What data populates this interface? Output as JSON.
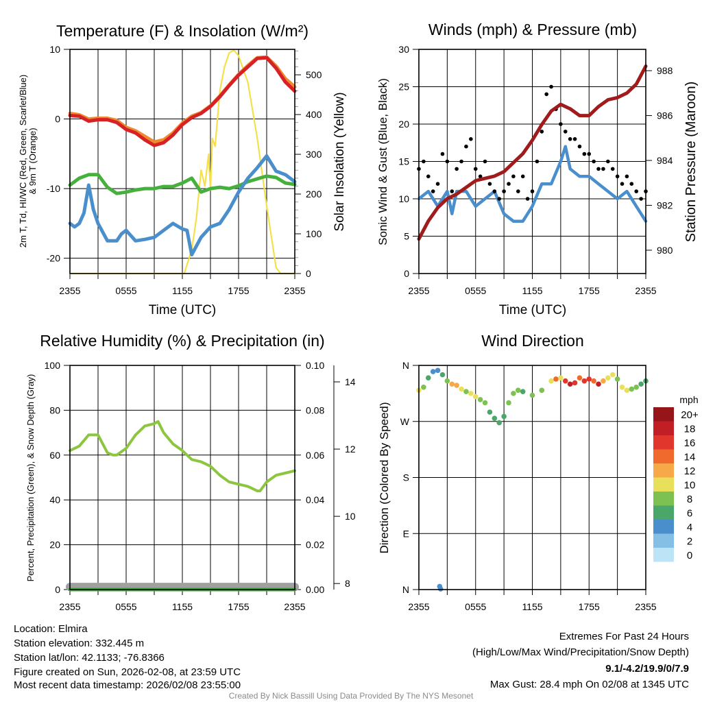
{
  "x_ticks": [
    "2355",
    "0555",
    "1155",
    "1755",
    "2355"
  ],
  "time_label": "Time (UTC)",
  "chart_data": [
    {
      "type": "line",
      "title": "Temperature (F) & Insolation (W/m²)",
      "ylabel_line1": "2m T, Td, HI/WC (Red, Green, Scarlet/Blue)",
      "ylabel_line2": "& 9m T (Orange)",
      "y2label": "Solar Insolation (Yellow)",
      "xlabel": "Time (UTC)",
      "xlim_hours": [
        0,
        24
      ],
      "ylim": [
        -22.2,
        10
      ],
      "y2lim": [
        0,
        564
      ],
      "yticks": [
        10,
        0,
        -10,
        -20
      ],
      "y2ticks": [
        0,
        100,
        200,
        300,
        400,
        500
      ],
      "series": [
        {
          "name": "Insolation",
          "axis": "right",
          "color": "#f5e04a",
          "x": [
            0,
            12.2,
            13,
            13.5,
            14,
            14.4,
            14.8,
            15,
            15.2,
            15.5,
            16,
            16.5,
            17,
            17.5,
            18,
            19,
            20,
            21,
            22,
            22.5,
            23,
            24
          ],
          "values": [
            0,
            0,
            60,
            140,
            260,
            220,
            300,
            210,
            340,
            320,
            460,
            520,
            555,
            562,
            548,
            480,
            340,
            170,
            15,
            0,
            0,
            0
          ]
        },
        {
          "name": "9m T",
          "axis": "left",
          "color": "#f08a30",
          "x": [
            0,
            1,
            2,
            3,
            4,
            5,
            6,
            7,
            8,
            9,
            10,
            11,
            12,
            13,
            14,
            15,
            16,
            17,
            18,
            19,
            20,
            21,
            22,
            23,
            24
          ],
          "values": [
            0.8,
            0.6,
            0,
            0.1,
            0.1,
            -0.2,
            -1.2,
            -1.7,
            -2.5,
            -3.3,
            -3.0,
            -2.0,
            -0.6,
            0.4,
            0.9,
            1.9,
            3.3,
            4.9,
            6.4,
            7.7,
            8.8,
            8.9,
            7.6,
            5.8,
            4.6
          ]
        },
        {
          "name": "2m T",
          "axis": "left",
          "color": "#d62224",
          "x": [
            0,
            1,
            2,
            3,
            4,
            5,
            6,
            7,
            8,
            9,
            10,
            11,
            12,
            13,
            14,
            15,
            16,
            17,
            18,
            19,
            20,
            21,
            22,
            23,
            24
          ],
          "values": [
            0.5,
            0.4,
            -0.3,
            -0.1,
            -0.1,
            -0.5,
            -1.5,
            -2.0,
            -3.0,
            -3.8,
            -3.4,
            -2.3,
            -0.8,
            0.2,
            0.8,
            1.8,
            3.2,
            4.8,
            6.3,
            7.5,
            8.7,
            8.8,
            7.3,
            5.3,
            4.0
          ]
        },
        {
          "name": "Td",
          "axis": "left",
          "color": "#46b03d",
          "x": [
            0,
            1,
            2,
            3,
            4,
            5,
            6,
            7,
            8,
            9,
            10,
            11,
            12,
            13,
            14,
            15,
            16,
            17,
            18,
            19,
            20,
            21,
            22,
            23,
            24
          ],
          "values": [
            -9.5,
            -8.5,
            -8.0,
            -8.0,
            -9.8,
            -10.7,
            -10.5,
            -10.2,
            -10.0,
            -10.0,
            -9.7,
            -9.7,
            -9.2,
            -8.5,
            -10.5,
            -10.0,
            -9.8,
            -10.0,
            -9.6,
            -9.0,
            -8.6,
            -8.2,
            -8.4,
            -9.2,
            -9.4
          ]
        },
        {
          "name": "HI/WC",
          "axis": "left",
          "color": "#4a8fcb",
          "x": [
            0,
            0.5,
            1,
            1.5,
            2,
            2.5,
            3,
            4,
            5,
            5.5,
            6,
            7,
            8,
            9,
            10,
            11,
            12,
            12.5,
            13,
            14,
            15,
            16,
            17,
            18,
            19,
            20,
            21,
            22,
            23,
            24
          ],
          "values": [
            -15,
            -15.5,
            -15,
            -13.5,
            -9.5,
            -13,
            -15,
            -17.5,
            -17.5,
            -16.5,
            -16,
            -17.5,
            -17.3,
            -17,
            -16,
            -15,
            -15.8,
            -16,
            -19.5,
            -17,
            -15.5,
            -15,
            -13,
            -10.5,
            -8.5,
            -7,
            -5.3,
            -7.5,
            -8,
            -9
          ]
        }
      ]
    },
    {
      "type": "line",
      "title": "Winds (mph) & Pressure (mb)",
      "ylabel": "Sonic Wind & Gust (Blue, Black)",
      "y2label": "Station Pressure (Maroon)",
      "xlabel": "Time (UTC)",
      "xlim_hours": [
        0,
        24
      ],
      "ylim": [
        0,
        30
      ],
      "y2lim": [
        978.96,
        988.95
      ],
      "yticks": [
        0,
        5,
        10,
        15,
        20,
        25,
        30
      ],
      "y2ticks": [
        980,
        982,
        984,
        986,
        988
      ],
      "series": [
        {
          "name": "Sonic Wind",
          "axis": "left",
          "color": "#4a8fcb",
          "x": [
            0,
            1,
            2,
            3,
            3.5,
            4,
            5,
            6,
            7,
            8,
            9,
            10,
            11,
            12,
            13,
            14,
            15,
            15.5,
            16,
            17,
            18,
            19,
            20,
            21,
            22,
            23,
            24
          ],
          "values": [
            10,
            11,
            9,
            11,
            8,
            11,
            11,
            9,
            10,
            11,
            8,
            7,
            7,
            9,
            12,
            12,
            15,
            17,
            14,
            13,
            13,
            12,
            11,
            10,
            11,
            9,
            7
          ]
        },
        {
          "name": "Gust",
          "axis": "left",
          "color": "#000000",
          "kind": "scatter",
          "x_step": 0.5,
          "values": [
            14,
            15,
            13,
            11,
            12,
            16,
            15,
            11,
            14,
            15,
            17,
            18,
            14,
            13,
            15,
            12,
            11,
            10,
            11,
            12,
            13,
            11,
            13,
            10,
            11,
            15,
            19,
            24,
            25,
            22,
            20,
            19,
            18,
            18,
            17,
            16,
            16,
            15,
            14,
            14,
            15,
            14,
            13,
            12,
            13,
            12,
            11,
            10,
            11
          ]
        },
        {
          "name": "Pressure",
          "axis": "right",
          "color": "#a01c1c",
          "x": [
            0,
            1,
            2,
            3,
            4,
            5,
            6,
            7,
            8,
            9,
            10,
            11,
            12,
            13,
            14,
            15,
            16,
            17,
            18,
            19,
            20,
            21,
            22,
            23,
            24
          ],
          "values": [
            980.5,
            981.3,
            981.9,
            982.3,
            982.5,
            982.8,
            983.1,
            983.2,
            983.3,
            983.5,
            983.9,
            984.3,
            984.9,
            985.6,
            986.2,
            986.5,
            986.3,
            986.0,
            986.0,
            986.4,
            986.7,
            986.8,
            987.0,
            987.4,
            988.2
          ]
        }
      ]
    },
    {
      "type": "line",
      "title": "Relative Humidity (%) & Precipitation (in)",
      "ylabel": "Percent, Precipitation (Green), & Snow Depth (Gray)",
      "xlim_hours": [
        0,
        24
      ],
      "ylim": [
        0,
        100
      ],
      "y2lim": [
        0,
        0.1
      ],
      "y3lim": [
        7.82,
        14.49
      ],
      "yticks": [
        0,
        20,
        40,
        60,
        80,
        100
      ],
      "y2ticks": [
        "0.00",
        "0.02",
        "0.04",
        "0.06",
        "0.08",
        "0.10"
      ],
      "y3ticks": [
        8,
        10,
        12,
        14
      ],
      "series": [
        {
          "name": "RH",
          "axis": "left",
          "color": "#8cc63f",
          "x": [
            0,
            1,
            2,
            3,
            4,
            4.6,
            5,
            6,
            7,
            8,
            9,
            9.4,
            10,
            11,
            12,
            13,
            14,
            15,
            16,
            17,
            18,
            19,
            20,
            20.3,
            21,
            22,
            23,
            24
          ],
          "values": [
            62,
            64,
            69,
            69,
            61,
            60,
            60,
            63,
            69,
            73,
            74,
            75,
            70,
            65,
            62,
            58,
            57,
            55,
            51,
            48,
            47,
            46,
            44,
            44,
            48,
            51,
            52,
            53
          ]
        },
        {
          "name": "Snow Depth",
          "axis": "far",
          "color": "#a0a0a0",
          "x": [
            0,
            24
          ],
          "values": [
            7.9,
            7.9
          ]
        },
        {
          "name": "Precipitation",
          "axis": "right",
          "color": "#3aa83a",
          "x": [
            0,
            24
          ],
          "values": [
            0,
            0
          ]
        }
      ]
    },
    {
      "type": "scatter",
      "title": "Wind Direction",
      "ylabel": "Direction (Colored By Speed)",
      "xlim_hours": [
        0,
        24
      ],
      "ylim_deg": [
        0,
        360
      ],
      "ytick_labels": [
        "N",
        "W",
        "S",
        "E",
        "N"
      ],
      "ytick_deg": [
        360,
        270,
        180,
        90,
        0
      ],
      "points": [
        [
          0,
          320,
          10
        ],
        [
          0.5,
          325,
          8
        ],
        [
          1,
          340,
          6
        ],
        [
          1.5,
          350,
          5
        ],
        [
          2,
          352,
          4
        ],
        [
          2.5,
          345,
          7
        ],
        [
          3,
          335,
          9
        ],
        [
          3.5,
          330,
          12
        ],
        [
          4,
          328,
          13
        ],
        [
          4.5,
          322,
          10
        ],
        [
          5,
          318,
          8
        ],
        [
          5.5,
          315,
          10
        ],
        [
          6,
          310,
          11
        ],
        [
          6.5,
          305,
          9
        ],
        [
          7,
          300,
          8
        ],
        [
          7.5,
          285,
          7
        ],
        [
          8,
          275,
          6
        ],
        [
          8.5,
          268,
          6
        ],
        [
          9,
          278,
          7
        ],
        [
          9.5,
          300,
          8
        ],
        [
          10,
          315,
          9
        ],
        [
          10.5,
          320,
          8
        ],
        [
          11,
          318,
          7
        ],
        [
          12,
          312,
          8
        ],
        [
          13,
          320,
          9
        ],
        [
          14,
          335,
          10
        ],
        [
          14.5,
          338,
          14
        ],
        [
          15,
          340,
          11
        ],
        [
          15.5,
          335,
          16
        ],
        [
          16,
          330,
          18
        ],
        [
          16.5,
          332,
          17
        ],
        [
          17,
          340,
          14
        ],
        [
          17.5,
          335,
          17
        ],
        [
          18,
          338,
          16
        ],
        [
          18.5,
          335,
          15
        ],
        [
          19,
          330,
          18
        ],
        [
          19.5,
          335,
          12
        ],
        [
          20,
          340,
          11
        ],
        [
          20.5,
          345,
          10
        ],
        [
          21,
          338,
          9
        ],
        [
          21.5,
          325,
          10
        ],
        [
          22,
          320,
          11
        ],
        [
          22.5,
          322,
          9
        ],
        [
          23,
          325,
          8
        ],
        [
          23.5,
          330,
          7
        ],
        [
          24,
          335,
          6
        ],
        [
          2.2,
          5,
          4
        ],
        [
          2.3,
          1,
          4
        ]
      ],
      "legend": {
        "title": "mph",
        "labels": [
          "20+",
          "18",
          "16",
          "14",
          "12",
          "10",
          "8",
          "6",
          "4",
          "2",
          "0"
        ],
        "colors": [
          "#961518",
          "#c21e25",
          "#e0362b",
          "#ef6a2c",
          "#f7a848",
          "#e8e05a",
          "#7cc151",
          "#4ba66a",
          "#4a8fcb",
          "#85bfe6",
          "#bde3f7"
        ]
      }
    }
  ],
  "footer": {
    "location": "Location: Elmira",
    "elevation": "Station elevation: 332.445 m",
    "latlon": "Station lat/lon: 42.1133; -76.8366",
    "created": "Figure created on Sun, 2026-02-08, at 23:59 UTC",
    "recent": "Most recent data timestamp: 2026/02/08 23:55:00",
    "extremes_title": "Extremes For Past 24 Hours",
    "extremes_sub": "(High/Low/Max Wind/Precipitation/Snow Depth)",
    "extremes_values": "9.1/-4.2/19.9/0/7.9",
    "max_gust": "Max Gust: 28.4 mph On 02/08 at 1345 UTC",
    "credit": "Created By Nick Bassill Using Data Provided By The NYS Mesonet"
  },
  "colors": {
    "extremes": "#d62224",
    "credit": "#8a8a8a"
  }
}
